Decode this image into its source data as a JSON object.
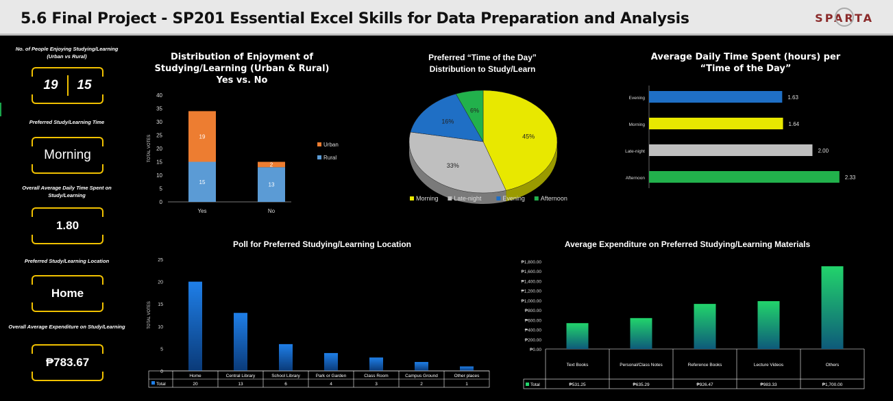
{
  "header": {
    "title": "5.6 Final Project - SP201 Essential Excel Skills for Data Preparation and Analysis",
    "logo": "SPARTA"
  },
  "kpis": {
    "enjoy_label": "No. of People Enjoying Studying/Learning (Urban vs Rural)",
    "enjoy_urban": "19",
    "enjoy_rural": "15",
    "time_label": "Preferred Study/Learning Time",
    "time_value": "Morning",
    "avg_time_label": "Overall Average Daily Time Spent on Study/Learning",
    "avg_time_value": "1.80",
    "location_label": "Preferred Study/Learning Location",
    "location_value": "Home",
    "expense_label": "Overall Average Expenditure on Study/Learning",
    "expense_value": "₱783.67"
  },
  "chart_data": [
    {
      "type": "bar",
      "stacked": true,
      "title": "Distribution of Enjoyment of Studying/Learning (Urban & Rural) Yes vs. No",
      "ylabel": "TOTAL VOTES",
      "categories": [
        "Yes",
        "No"
      ],
      "ylim": [
        0,
        40
      ],
      "yticks": [
        0,
        5,
        10,
        15,
        20,
        25,
        30,
        35,
        40
      ],
      "series": [
        {
          "name": "Rural",
          "values": [
            15,
            13
          ],
          "color": "#5b9bd5"
        },
        {
          "name": "Urban",
          "values": [
            19,
            2
          ],
          "color": "#ed7d31"
        }
      ],
      "legend": "right"
    },
    {
      "type": "pie",
      "title": "Preferred “Time of the Day” Distribution to Study/Learn",
      "labels": [
        "Morning",
        "Late-night",
        "Evening",
        "Afternoon"
      ],
      "values": [
        45,
        33,
        16,
        6
      ],
      "value_labels": [
        "45%",
        "33%",
        "16%",
        "6%"
      ],
      "colors": [
        "#e8e800",
        "#bfbfbf",
        "#1f6fc5",
        "#22b14c"
      ],
      "legend": "bottom"
    },
    {
      "type": "bar",
      "orientation": "horizontal",
      "title": "Average Daily Time Spent (hours) per “Time of the Day”",
      "categories": [
        "Evening",
        "Morning",
        "Late-night",
        "Afternoon"
      ],
      "values": [
        1.63,
        1.64,
        2.0,
        2.33
      ],
      "value_labels": [
        "1.63",
        "1.64",
        "2.00",
        "2.33"
      ],
      "colors": [
        "#1f6fc5",
        "#e8e800",
        "#bfbfbf",
        "#22b14c"
      ],
      "xlim": [
        0,
        2.6
      ]
    },
    {
      "type": "bar",
      "title": "Poll for Preferred Studying/Learning Location",
      "ylabel": "TOTAL VOTES",
      "categories": [
        "Home",
        "Central Library",
        "School Library",
        "Park or Garden",
        "Class Room",
        "Campus Ground",
        "Other places"
      ],
      "values": [
        20,
        13,
        6,
        4,
        3,
        2,
        1
      ],
      "ylim": [
        0,
        25
      ],
      "yticks": [
        0,
        5,
        10,
        15,
        20,
        25
      ],
      "table_series": "Total",
      "table_values": [
        "20",
        "13",
        "6",
        "4",
        "3",
        "2",
        "1"
      ]
    },
    {
      "type": "bar",
      "title": "Average Expenditure on Preferred Studying/Learning Materials",
      "categories": [
        "Text Books",
        "Personal/Class Notes",
        "Reference Books",
        "Lecture Videos",
        "Others"
      ],
      "values": [
        531.25,
        635.29,
        926.47,
        983.33,
        1700.0
      ],
      "ylim": [
        0,
        1800
      ],
      "yticks": [
        "₱0.00",
        "₱200.00",
        "₱400.00",
        "₱600.00",
        "₱800.00",
        "₱1,000.00",
        "₱1,200.00",
        "₱1,400.00",
        "₱1,600.00",
        "₱1,800.00"
      ],
      "table_series": "Total",
      "table_values": [
        "₱531.25",
        "₱635.29",
        "₱926.47",
        "₱983.33",
        "₱1,700.00"
      ]
    }
  ]
}
